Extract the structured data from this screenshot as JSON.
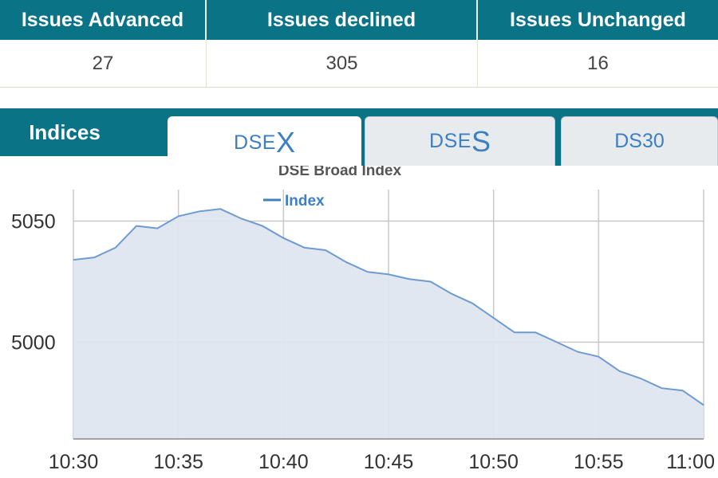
{
  "stats": {
    "headers": [
      "Issues Advanced",
      "Issues declined",
      "Issues Unchanged"
    ],
    "values": [
      "27",
      "305",
      "16"
    ]
  },
  "tabs": {
    "section_label": "Indices",
    "items": [
      {
        "prefix": "DSE",
        "suffix": "X",
        "active": true
      },
      {
        "prefix": "DSE",
        "suffix": "S",
        "active": false
      },
      {
        "label": "DS30",
        "active": false
      }
    ]
  },
  "colors": {
    "header_bg": "#0b7386",
    "line": "#6f9bcf",
    "area": "#dfe6f0",
    "tab_text": "#3d7fc1"
  },
  "chart_data": {
    "type": "area",
    "title": "DSE Broad Index",
    "legend": "top-center",
    "grid": true,
    "xlim": [
      0,
      30
    ],
    "ylim": [
      4960,
      5063
    ],
    "x_ticks": [
      {
        "v": 0,
        "label": "10:30"
      },
      {
        "v": 5,
        "label": "10:35"
      },
      {
        "v": 10,
        "label": "10:40"
      },
      {
        "v": 15,
        "label": "10:45"
      },
      {
        "v": 20,
        "label": "10:50"
      },
      {
        "v": 25,
        "label": "10:55"
      },
      {
        "v": 30,
        "label": "11:00"
      }
    ],
    "y_ticks": [
      {
        "v": 5000,
        "label": "5000"
      },
      {
        "v": 5050,
        "label": "5050"
      }
    ],
    "series": [
      {
        "name": "Index",
        "x": [
          0,
          1,
          2,
          3,
          4,
          5,
          6,
          7,
          8,
          9,
          10,
          11,
          12,
          13,
          14,
          15,
          16,
          17,
          18,
          19,
          20,
          21,
          22,
          23,
          24,
          25,
          26,
          27,
          28,
          29,
          30
        ],
        "y": [
          5034,
          5035,
          5039,
          5048,
          5047,
          5052,
          5054,
          5055,
          5051,
          5048,
          5043,
          5039,
          5038,
          5033,
          5029,
          5028,
          5026,
          5025,
          5020,
          5016,
          5010,
          5004,
          5004,
          5000,
          4996,
          4994,
          4988,
          4985,
          4981,
          4980,
          4974
        ]
      }
    ]
  }
}
